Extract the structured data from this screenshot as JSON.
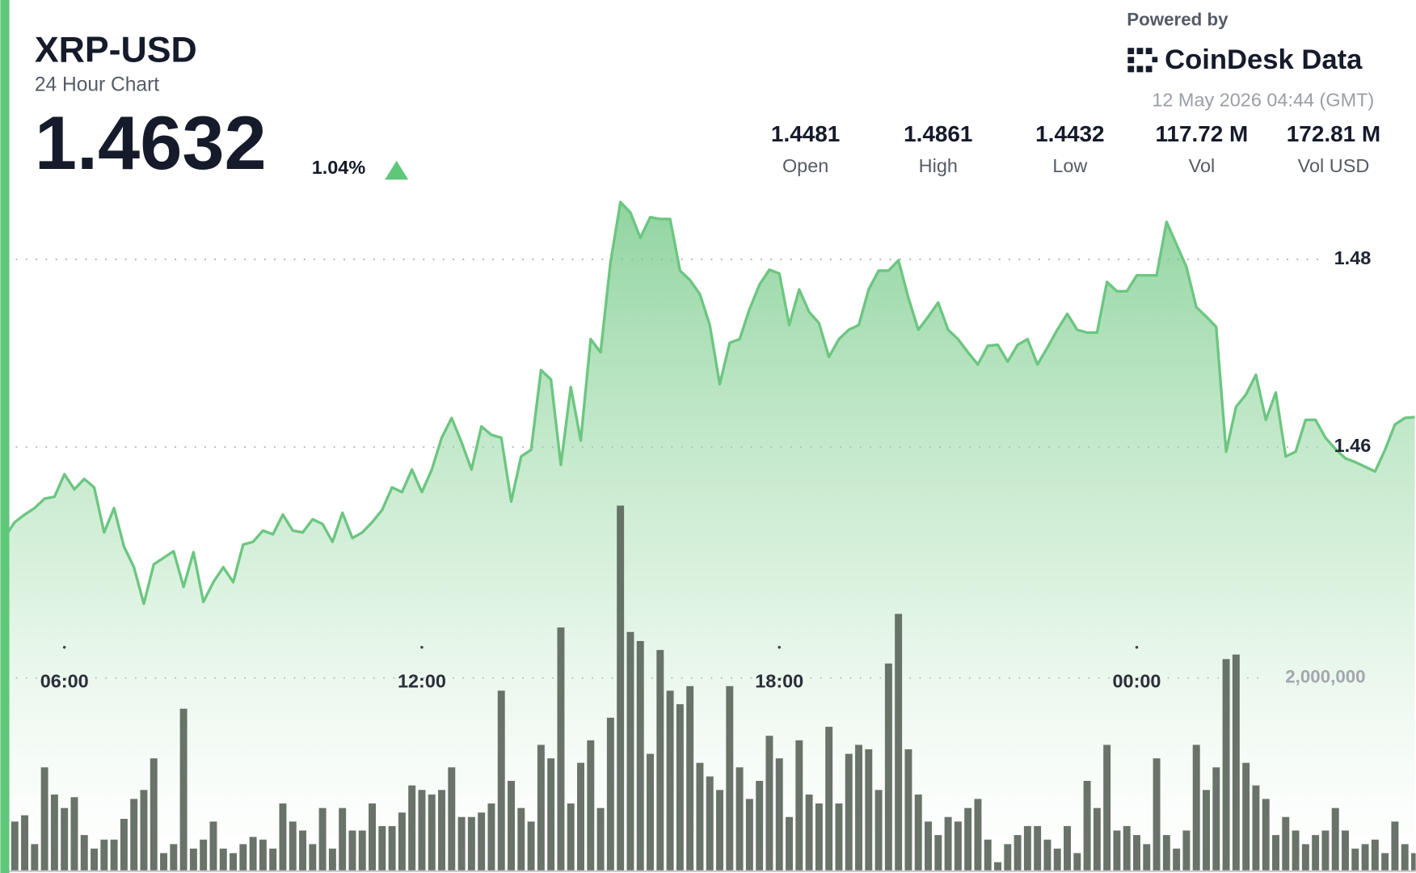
{
  "header": {
    "symbol": "XRP-USD",
    "subtitle": "24 Hour Chart",
    "price": "1.4632",
    "change": "1.04%",
    "powered_by": "Powered by",
    "brand": "CoinDesk Data",
    "timestamp": "12 May 2026 04:44 (GMT)"
  },
  "stats": [
    {
      "value": "1.4481",
      "label": "Open"
    },
    {
      "value": "1.4861",
      "label": "High"
    },
    {
      "value": "1.4432",
      "label": "Low"
    },
    {
      "value": "117.72 M",
      "label": "Vol"
    },
    {
      "value": "172.81 M",
      "label": "Vol USD"
    }
  ],
  "chart_data": {
    "type": "line",
    "categories": [
      null,
      null,
      null,
      null,
      null,
      null,
      "06:00",
      null,
      null,
      null,
      null,
      null,
      null,
      null,
      null,
      null,
      null,
      null,
      null,
      null,
      null,
      null,
      null,
      null,
      null,
      null,
      null,
      null,
      null,
      null,
      null,
      null,
      null,
      null,
      null,
      null,
      null,
      null,
      null,
      null,
      null,
      null,
      "12:00",
      null,
      null,
      null,
      null,
      null,
      null,
      null,
      null,
      null,
      null,
      null,
      null,
      null,
      null,
      null,
      null,
      null,
      null,
      null,
      null,
      null,
      null,
      null,
      null,
      null,
      null,
      null,
      null,
      null,
      null,
      null,
      null,
      null,
      null,
      null,
      "18:00",
      null,
      null,
      null,
      null,
      null,
      null,
      null,
      null,
      null,
      null,
      null,
      null,
      null,
      null,
      null,
      null,
      null,
      null,
      null,
      null,
      null,
      null,
      null,
      null,
      null,
      null,
      null,
      null,
      null,
      null,
      null,
      null,
      null,
      null,
      null,
      "00:00",
      null,
      null,
      null,
      null,
      null,
      null,
      null,
      null,
      null,
      null,
      null,
      null,
      null,
      null,
      null,
      null,
      null,
      null,
      null,
      null,
      null,
      null,
      null,
      null,
      null,
      null,
      null,
      null
    ],
    "series": [
      {
        "color": "#6cc680",
        "values": [
          1.4504,
          1.452,
          1.4528,
          1.4535,
          1.4545,
          1.4547,
          1.4571,
          1.4555,
          1.4566,
          1.4557,
          1.4509,
          1.4535,
          1.4494,
          1.4472,
          1.4433,
          1.4475,
          1.4482,
          1.4489,
          1.4451,
          1.4488,
          1.4435,
          1.4456,
          1.4472,
          1.4456,
          1.4496,
          1.4499,
          1.4511,
          1.4507,
          1.4528,
          1.4511,
          1.4509,
          1.4523,
          1.4518,
          1.4499,
          1.453,
          1.4503,
          1.4509,
          1.452,
          1.4533,
          1.4557,
          1.4552,
          1.4576,
          1.4552,
          1.4576,
          1.461,
          1.4631,
          1.4605,
          1.4576,
          1.4622,
          1.4613,
          1.461,
          1.4542,
          1.459,
          1.4597,
          1.4682,
          1.4672,
          1.4581,
          1.4664,
          1.4607,
          1.4715,
          1.4701,
          1.4797,
          1.4861,
          1.485,
          1.4823,
          1.4845,
          1.4843,
          1.4843,
          1.4788,
          1.4778,
          1.4763,
          1.473,
          1.4667,
          1.4711,
          1.4715,
          1.4747,
          1.4773,
          1.4789,
          1.4785,
          1.473,
          1.4768,
          1.4744,
          1.4732,
          1.4696,
          1.4715,
          1.4725,
          1.473,
          1.4768,
          1.4788,
          1.4788,
          1.4799,
          1.4759,
          1.4725,
          1.4739,
          1.4754,
          1.4725,
          1.4715,
          1.4701,
          1.4688,
          1.4708,
          1.4709,
          1.4691,
          1.4709,
          1.4715,
          1.4688,
          1.4706,
          1.4725,
          1.4742,
          1.4725,
          1.4722,
          1.4722,
          1.4776,
          1.4766,
          1.4766,
          1.4783,
          1.4783,
          1.4783,
          1.484,
          1.4816,
          1.4792,
          1.4749,
          1.4739,
          1.4728,
          1.4595,
          1.4643,
          1.4656,
          1.4677,
          1.4629,
          1.4658,
          1.459,
          1.4595,
          1.4629,
          1.4629,
          1.461,
          1.4598,
          1.4588,
          1.4584,
          1.4579,
          1.4574,
          1.4597,
          1.4624,
          1.4631,
          1.4632
        ]
      },
      {
        "type": "bar",
        "axis": "y2",
        "color": "#5c675c",
        "values": [
          561000,
          514000,
          579000,
          280000,
          1075000,
          794000,
          654000,
          766000,
          374000,
          234000,
          327000,
          327000,
          542000,
          748000,
          841000,
          1168000,
          187000,
          280000,
          1682000,
          234000,
          327000,
          514000,
          234000,
          187000,
          280000,
          355000,
          327000,
          234000,
          701000,
          514000,
          421000,
          280000,
          654000,
          234000,
          654000,
          421000,
          421000,
          701000,
          467000,
          467000,
          607000,
          888000,
          841000,
          794000,
          841000,
          1075000,
          561000,
          561000,
          607000,
          701000,
          1869000,
          935000,
          654000,
          514000,
          1308000,
          1168000,
          2523000,
          701000,
          1122000,
          1355000,
          654000,
          1589000,
          3785000,
          2477000,
          2383000,
          1215000,
          2290000,
          1869000,
          1729000,
          1916000,
          1122000,
          981000,
          841000,
          1916000,
          1075000,
          748000,
          935000,
          1402000,
          1168000,
          561000,
          1355000,
          794000,
          701000,
          1495000,
          701000,
          1215000,
          1308000,
          1262000,
          841000,
          2150000,
          2664000,
          1262000,
          794000,
          514000,
          374000,
          561000,
          514000,
          654000,
          748000,
          327000,
          93000,
          280000,
          374000,
          467000,
          467000,
          327000,
          234000,
          467000,
          187000,
          935000,
          654000,
          1308000,
          421000,
          467000,
          374000,
          280000,
          1168000,
          374000,
          234000,
          421000,
          1308000,
          841000,
          1075000,
          2196000,
          2243000,
          1122000,
          888000,
          748000,
          374000,
          561000,
          421000,
          280000,
          374000,
          421000,
          654000,
          421000,
          234000,
          280000,
          327000,
          187000,
          514000,
          280000,
          187000
        ]
      }
    ],
    "ylim": [
      1.4148,
      1.4884
    ],
    "yticks": [
      1.46,
      1.48
    ],
    "y2lim": [
      0,
      7150000
    ],
    "y2ticks": [
      {
        "value": 2000000,
        "label": "2,000,000"
      }
    ],
    "grid": true
  }
}
